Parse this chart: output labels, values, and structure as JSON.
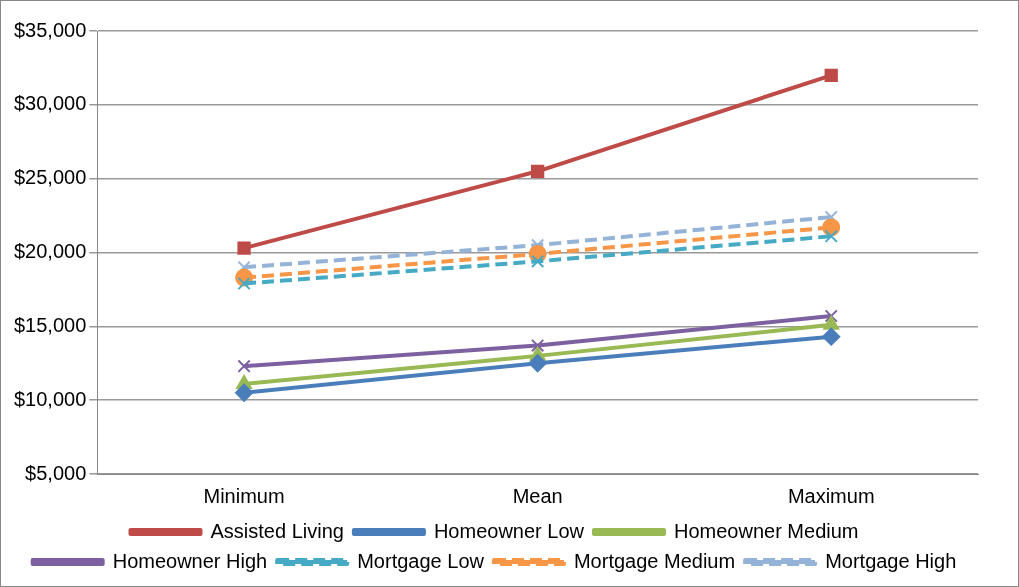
{
  "chart_data": {
    "type": "line",
    "categories": [
      "Minimum",
      "Mean",
      "Maximum"
    ],
    "ylim": [
      5000,
      35000
    ],
    "yticks": [
      {
        "value": 5000,
        "label": "$5,000"
      },
      {
        "value": 10000,
        "label": "$10,000"
      },
      {
        "value": 15000,
        "label": "$15,000"
      },
      {
        "value": 20000,
        "label": "$20,000"
      },
      {
        "value": 25000,
        "label": "$25,000"
      },
      {
        "value": 30000,
        "label": "$30,000"
      },
      {
        "value": 35000,
        "label": "$35,000"
      }
    ],
    "grid": "y",
    "legend": "bottom",
    "series": [
      {
        "name": "Assisted Living",
        "color": "#be4b48",
        "marker": "square",
        "line_style": "solid",
        "values": [
          20300,
          25500,
          32000
        ]
      },
      {
        "name": "Homeowner Low",
        "color": "#4a7ebb",
        "marker": "diamond",
        "line_style": "solid",
        "values": [
          10500,
          12500,
          14300
        ]
      },
      {
        "name": "Homeowner Medium",
        "color": "#98b954",
        "marker": "triangle",
        "line_style": "solid",
        "values": [
          11100,
          13000,
          15100
        ]
      },
      {
        "name": "Homeowner High",
        "color": "#7d60a0",
        "marker": "cross",
        "line_style": "solid",
        "values": [
          12300,
          13700,
          15700
        ]
      },
      {
        "name": "Mortgage Low",
        "color": "#46aac5",
        "marker": "cross",
        "line_style": "dashed",
        "values": [
          17900,
          19400,
          21100
        ]
      },
      {
        "name": "Mortgage Medium",
        "color": "#f79646",
        "marker": "circle",
        "line_style": "dashed",
        "values": [
          18300,
          19900,
          21700
        ]
      },
      {
        "name": "Mortgage High",
        "color": "#95b3d7",
        "marker": "cross",
        "line_style": "dashed",
        "values": [
          19000,
          20500,
          22400
        ]
      }
    ]
  }
}
